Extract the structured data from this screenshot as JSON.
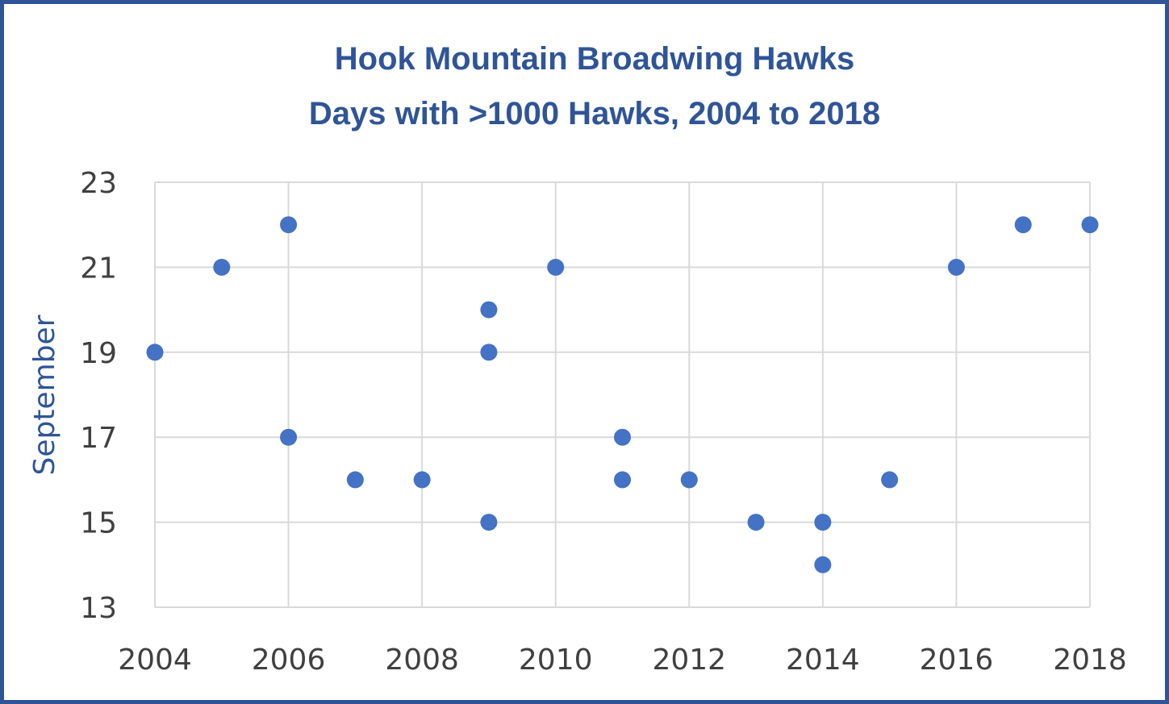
{
  "colors": {
    "frame": "#2f5597",
    "title": "#2f5597",
    "point": "#4472c4",
    "grid": "#d9d9d9",
    "tick_text": "#404040"
  },
  "chart_data": {
    "type": "scatter",
    "title": "Hook Mountain Broadwing Hawks",
    "subtitle": "Days with >1000 Hawks, 2004 to 2018",
    "xlabel": "",
    "ylabel": "September",
    "xlim": [
      2004,
      2018
    ],
    "ylim": [
      13,
      23
    ],
    "x_ticks": [
      2004,
      2006,
      2008,
      2010,
      2012,
      2014,
      2016,
      2018
    ],
    "y_ticks": [
      13,
      15,
      17,
      19,
      21,
      23
    ],
    "grid": true,
    "legend": "none",
    "points": [
      {
        "x": 2004,
        "y": 19
      },
      {
        "x": 2005,
        "y": 21
      },
      {
        "x": 2006,
        "y": 22
      },
      {
        "x": 2006,
        "y": 17
      },
      {
        "x": 2007,
        "y": 16
      },
      {
        "x": 2008,
        "y": 16
      },
      {
        "x": 2009,
        "y": 20
      },
      {
        "x": 2009,
        "y": 19
      },
      {
        "x": 2009,
        "y": 15
      },
      {
        "x": 2010,
        "y": 21
      },
      {
        "x": 2011,
        "y": 17
      },
      {
        "x": 2011,
        "y": 16
      },
      {
        "x": 2012,
        "y": 16
      },
      {
        "x": 2013,
        "y": 15
      },
      {
        "x": 2014,
        "y": 15
      },
      {
        "x": 2014,
        "y": 14
      },
      {
        "x": 2015,
        "y": 16
      },
      {
        "x": 2016,
        "y": 21
      },
      {
        "x": 2017,
        "y": 22
      },
      {
        "x": 2018,
        "y": 22
      }
    ]
  }
}
